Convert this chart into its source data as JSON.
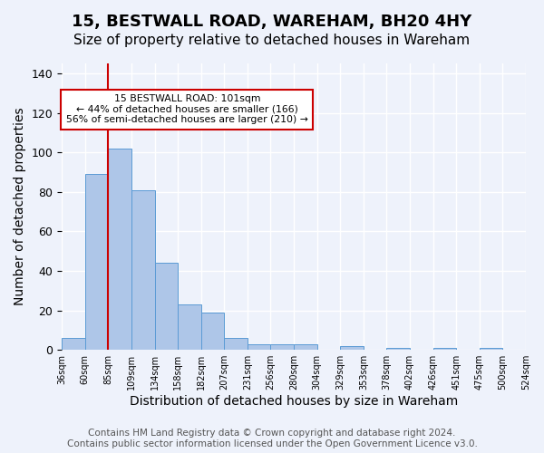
{
  "title": "15, BESTWALL ROAD, WAREHAM, BH20 4HY",
  "subtitle": "Size of property relative to detached houses in Wareham",
  "xlabel": "Distribution of detached houses by size in Wareham",
  "ylabel": "Number of detached properties",
  "bar_values": [
    6,
    89,
    102,
    81,
    44,
    23,
    19,
    6,
    3,
    3,
    3,
    0,
    2,
    0,
    1,
    0,
    1,
    0,
    1,
    0
  ],
  "categories": [
    "36sqm",
    "60sqm",
    "85sqm",
    "109sqm",
    "134sqm",
    "158sqm",
    "182sqm",
    "207sqm",
    "231sqm",
    "256sqm",
    "280sqm",
    "304sqm",
    "329sqm",
    "353sqm",
    "378sqm",
    "402sqm",
    "426sqm",
    "451sqm",
    "475sqm",
    "500sqm",
    "524sqm"
  ],
  "bar_color": "#aec6e8",
  "bar_edge_color": "#5b9bd5",
  "background_color": "#eef2fb",
  "grid_color": "#ffffff",
  "vline_color": "#cc0000",
  "annotation_text": "15 BESTWALL ROAD: 101sqm\n← 44% of detached houses are smaller (166)\n56% of semi-detached houses are larger (210) →",
  "annotation_box_color": "#ffffff",
  "annotation_box_edge": "#cc0000",
  "footer_text": "Contains HM Land Registry data © Crown copyright and database right 2024.\nContains public sector information licensed under the Open Government Licence v3.0.",
  "ylim": [
    0,
    145
  ],
  "yticks": [
    0,
    20,
    40,
    60,
    80,
    100,
    120,
    140
  ],
  "title_fontsize": 13,
  "subtitle_fontsize": 11,
  "xlabel_fontsize": 10,
  "ylabel_fontsize": 10,
  "footer_fontsize": 7.5
}
